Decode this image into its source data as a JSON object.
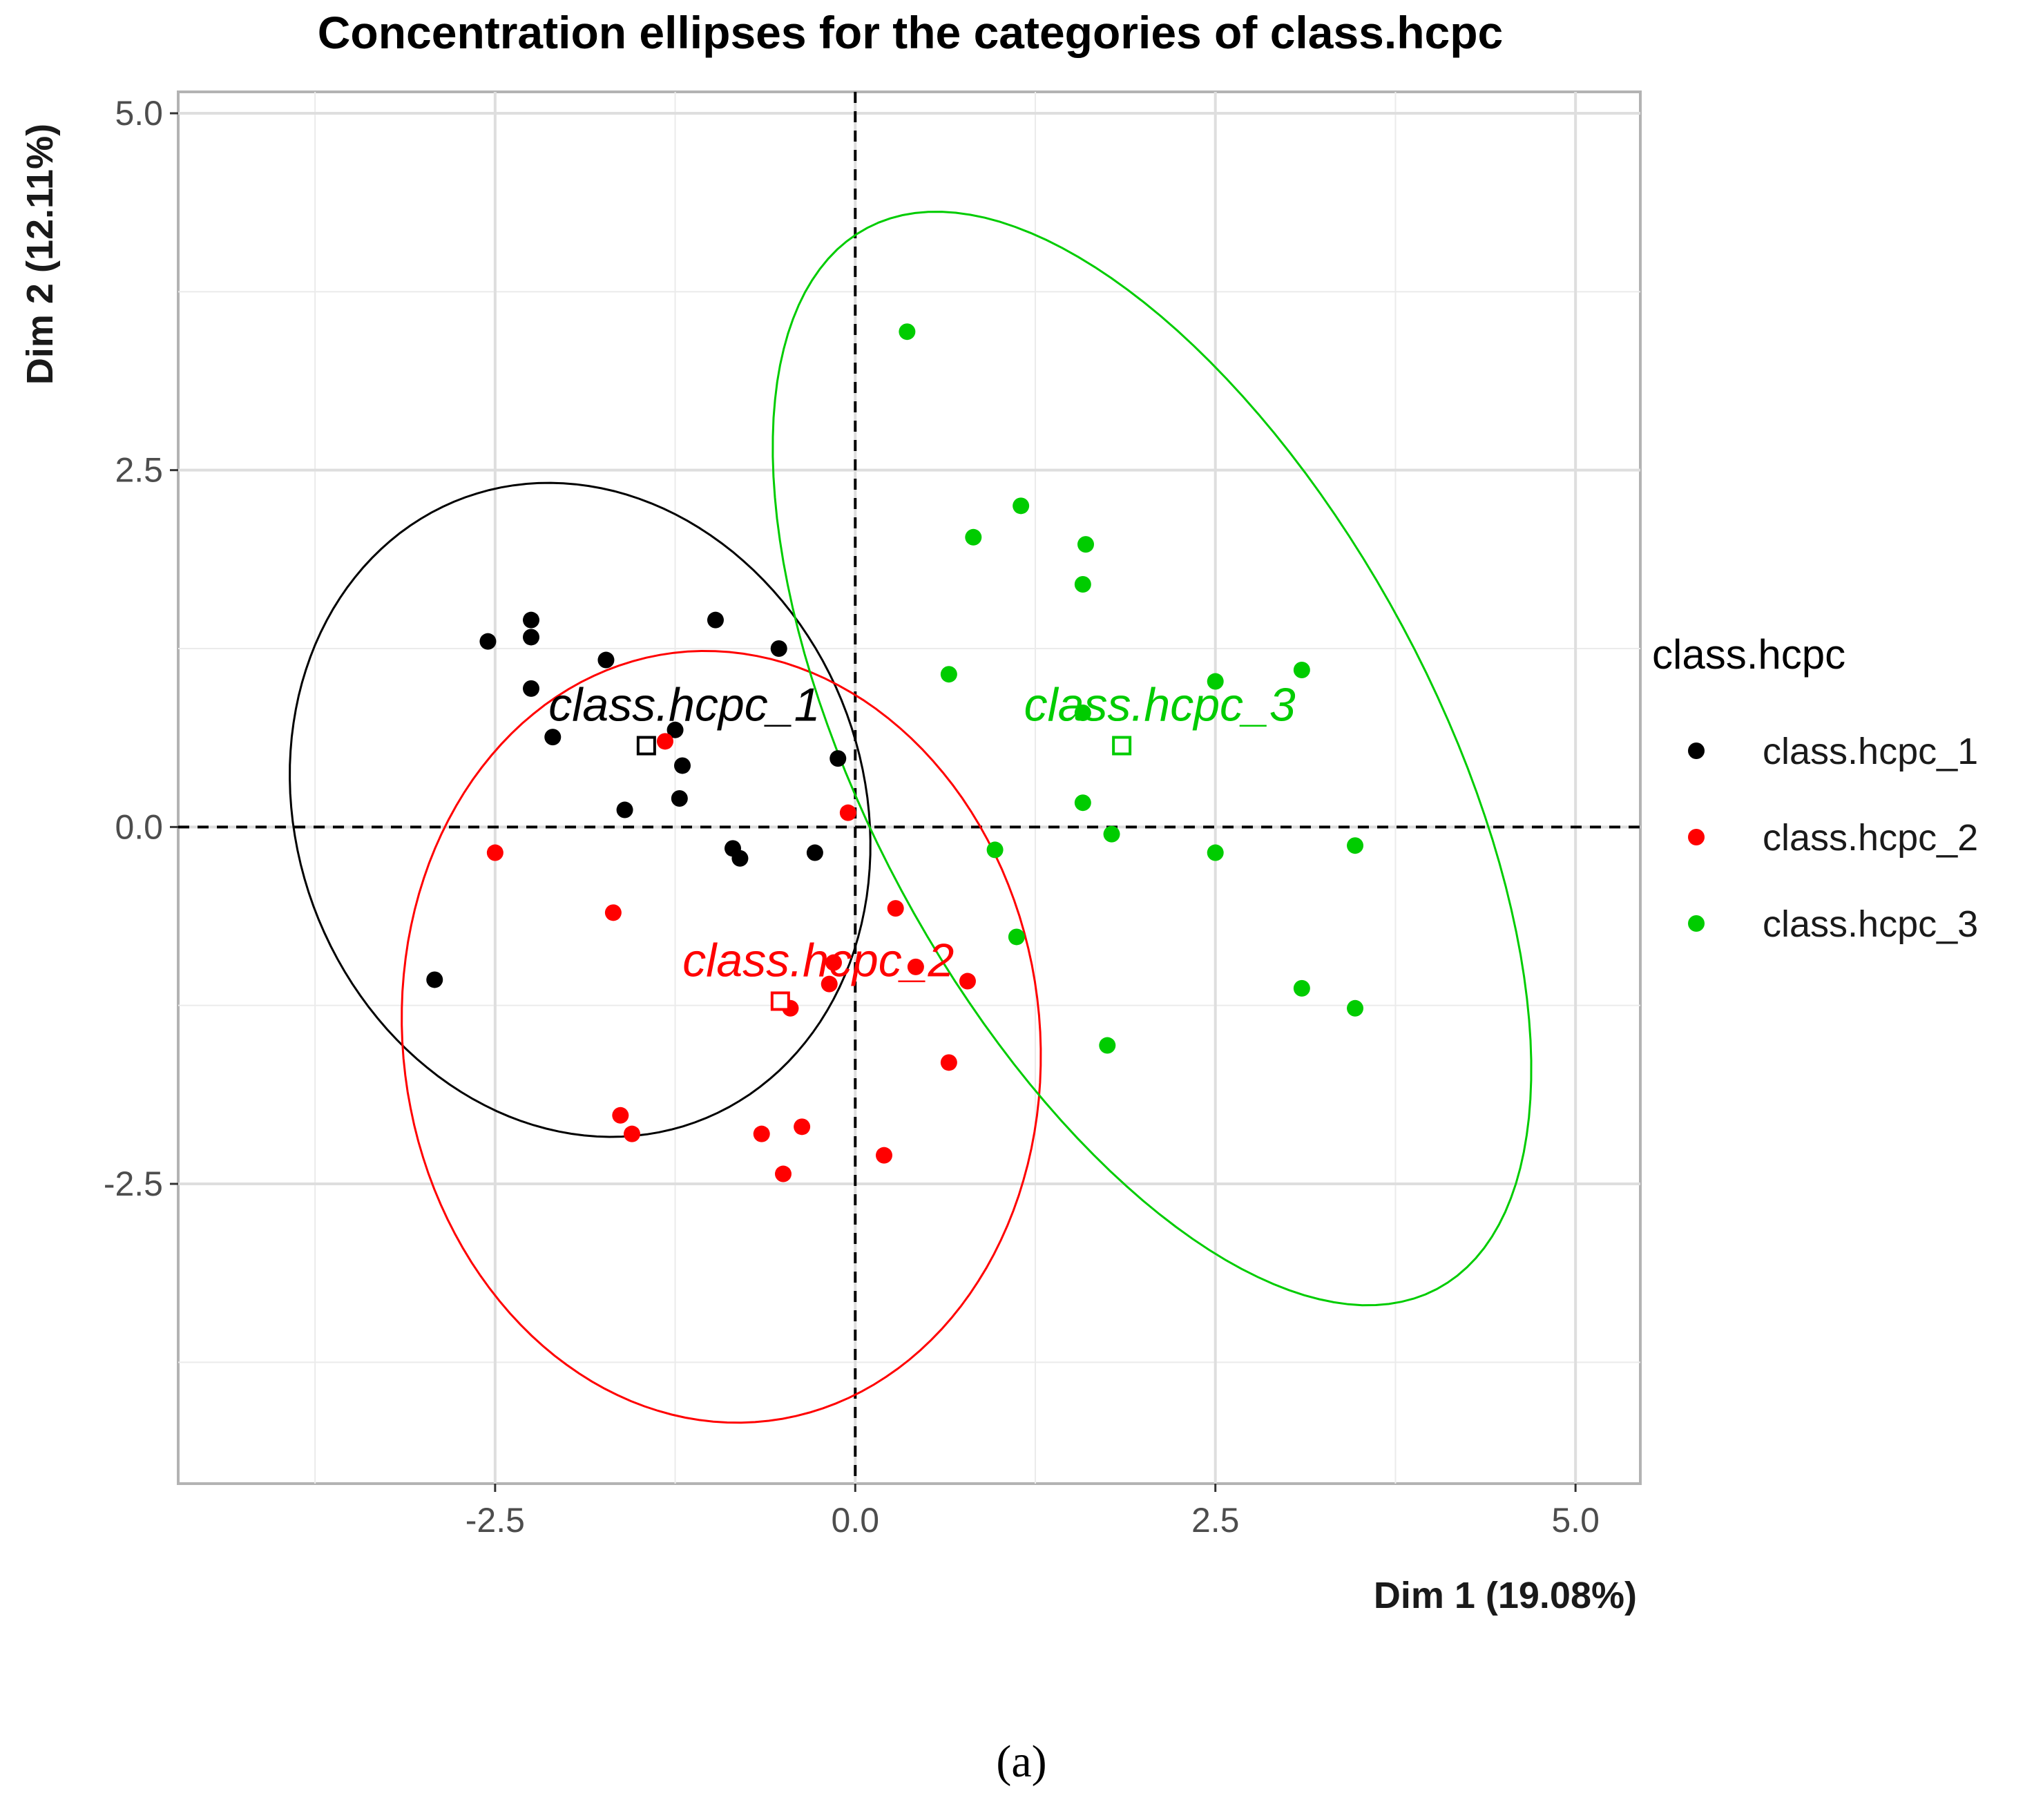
{
  "chart_data": {
    "type": "scatter",
    "title": "Concentration ellipses for the categories of class.hcpc",
    "xlabel": "Dim 1 (19.08%)",
    "ylabel": "Dim 2 (12.11%)",
    "xlim": [
      -4.7,
      5.45
    ],
    "ylim": [
      -4.6,
      5.15
    ],
    "x_ticks": [
      -2.5,
      0.0,
      2.5,
      5.0
    ],
    "x_tick_labels": [
      "-2.5",
      "0.0",
      "2.5",
      "5.0"
    ],
    "y_ticks": [
      5.0,
      2.5,
      0.0,
      -2.5
    ],
    "y_tick_labels": [
      "5.0",
      "2.5",
      "0.0",
      "-2.5"
    ],
    "grid": true,
    "legend_title": "class.hcpc",
    "legend_position": "right",
    "caption": "(a)",
    "series": [
      {
        "name": "class.hcpc_1",
        "color": "#000000",
        "label": "class.hcpc_1",
        "centroid": [
          -1.45,
          0.57
        ],
        "ellipse": {
          "cx": -1.91,
          "cy": 0.12,
          "rx": 1.97,
          "ry": 2.33,
          "angle": 20
        },
        "points": [
          [
            -2.55,
            1.3
          ],
          [
            -2.25,
            1.45
          ],
          [
            -2.25,
            1.33
          ],
          [
            -2.25,
            0.97
          ],
          [
            -2.1,
            0.63
          ],
          [
            -1.73,
            1.17
          ],
          [
            -1.6,
            0.12
          ],
          [
            -1.25,
            0.68
          ],
          [
            -1.2,
            0.43
          ],
          [
            -1.22,
            0.2
          ],
          [
            -0.97,
            1.45
          ],
          [
            -0.85,
            -0.15
          ],
          [
            -0.8,
            -0.22
          ],
          [
            -0.53,
            1.25
          ],
          [
            -0.28,
            -0.18
          ],
          [
            -0.12,
            0.48
          ],
          [
            -2.92,
            -1.07
          ]
        ]
      },
      {
        "name": "class.hcpc_2",
        "color": "#ff0000",
        "label": "class.hcpc_2",
        "centroid": [
          -0.52,
          -1.22
        ],
        "ellipse": {
          "cx": -0.93,
          "cy": -1.47,
          "rx": 2.71,
          "ry": 2.21,
          "angle": 97
        },
        "points": [
          [
            -1.32,
            0.6
          ],
          [
            -0.05,
            0.1
          ],
          [
            -2.5,
            -0.18
          ],
          [
            -1.68,
            -0.6
          ],
          [
            -0.15,
            -0.95
          ],
          [
            -0.18,
            -1.1
          ],
          [
            0.28,
            -0.57
          ],
          [
            0.42,
            -0.98
          ],
          [
            0.78,
            -1.08
          ],
          [
            -0.45,
            -1.27
          ],
          [
            0.65,
            -1.65
          ],
          [
            -1.63,
            -2.02
          ],
          [
            -1.55,
            -2.15
          ],
          [
            -0.65,
            -2.15
          ],
          [
            -0.37,
            -2.1
          ],
          [
            0.2,
            -2.3
          ],
          [
            -0.5,
            -2.43
          ]
        ]
      },
      {
        "name": "class.hcpc_3",
        "color": "#00cc00",
        "label": "class.hcpc_3",
        "centroid": [
          1.85,
          0.57
        ],
        "ellipse": {
          "cx": 2.06,
          "cy": 0.48,
          "rx": 4.21,
          "ry": 1.97,
          "angle": 118
        },
        "points": [
          [
            0.36,
            3.47
          ],
          [
            1.15,
            2.25
          ],
          [
            0.82,
            2.03
          ],
          [
            1.6,
            1.98
          ],
          [
            1.58,
            1.7
          ],
          [
            0.65,
            1.07
          ],
          [
            2.5,
            1.02
          ],
          [
            3.1,
            1.1
          ],
          [
            1.58,
            0.8
          ],
          [
            1.58,
            0.17
          ],
          [
            1.78,
            -0.05
          ],
          [
            0.97,
            -0.16
          ],
          [
            2.5,
            -0.18
          ],
          [
            3.47,
            -0.13
          ],
          [
            1.12,
            -0.77
          ],
          [
            3.1,
            -1.13
          ],
          [
            3.47,
            -1.27
          ],
          [
            1.75,
            -1.53
          ]
        ]
      }
    ]
  }
}
